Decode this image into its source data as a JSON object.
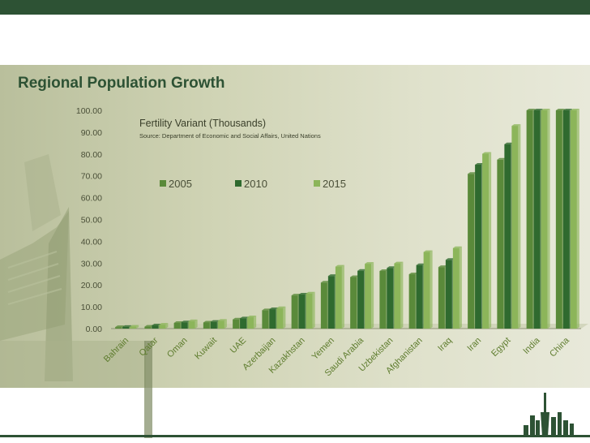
{
  "slide": {
    "title": "Regional Population Growth"
  },
  "chart_data": {
    "type": "bar",
    "title": "Fertility Variant (Thousands)",
    "subtitle": "Source: Department of Economic and Social Affairs, United Nations",
    "xlabel": "",
    "ylabel": "",
    "ylim": [
      0,
      100
    ],
    "yticks": [
      "0.00",
      "10.00",
      "20.00",
      "30.00",
      "40.00",
      "50.00",
      "60.00",
      "70.00",
      "80.00",
      "90.00",
      "100.00"
    ],
    "grid": false,
    "legend_position": "top",
    "categories": [
      "Bahrain",
      "Qatar",
      "Oman",
      "Kuwait",
      "UAE",
      "Azerbaijan",
      "Kazakhstan",
      "Yemen",
      "Saudi Arabia",
      "Uzbekistan",
      "Afghanistan",
      "Iraq",
      "Iran",
      "Egypt",
      "India",
      "China"
    ],
    "series": [
      {
        "name": "2005",
        "color": "#5a8a3a",
        "values": [
          0.7,
          0.9,
          2.6,
          2.8,
          4.2,
          8.4,
          15.2,
          21.1,
          23.6,
          26.4,
          24.9,
          28.2,
          70.9,
          77.4,
          100,
          100
        ]
      },
      {
        "name": "2010",
        "color": "#2f6a2f",
        "values": [
          0.8,
          1.5,
          2.9,
          3.1,
          4.7,
          8.9,
          15.6,
          24.1,
          26.5,
          27.8,
          29.1,
          31.5,
          75.1,
          84.5,
          100,
          100
        ]
      },
      {
        "name": "2015",
        "color": "#8cb55a",
        "values": [
          0.9,
          1.8,
          3.4,
          3.6,
          5.2,
          9.4,
          16.1,
          28.4,
          29.7,
          29.9,
          35.1,
          36.9,
          80.1,
          92.9,
          100,
          100
        ]
      }
    ]
  }
}
